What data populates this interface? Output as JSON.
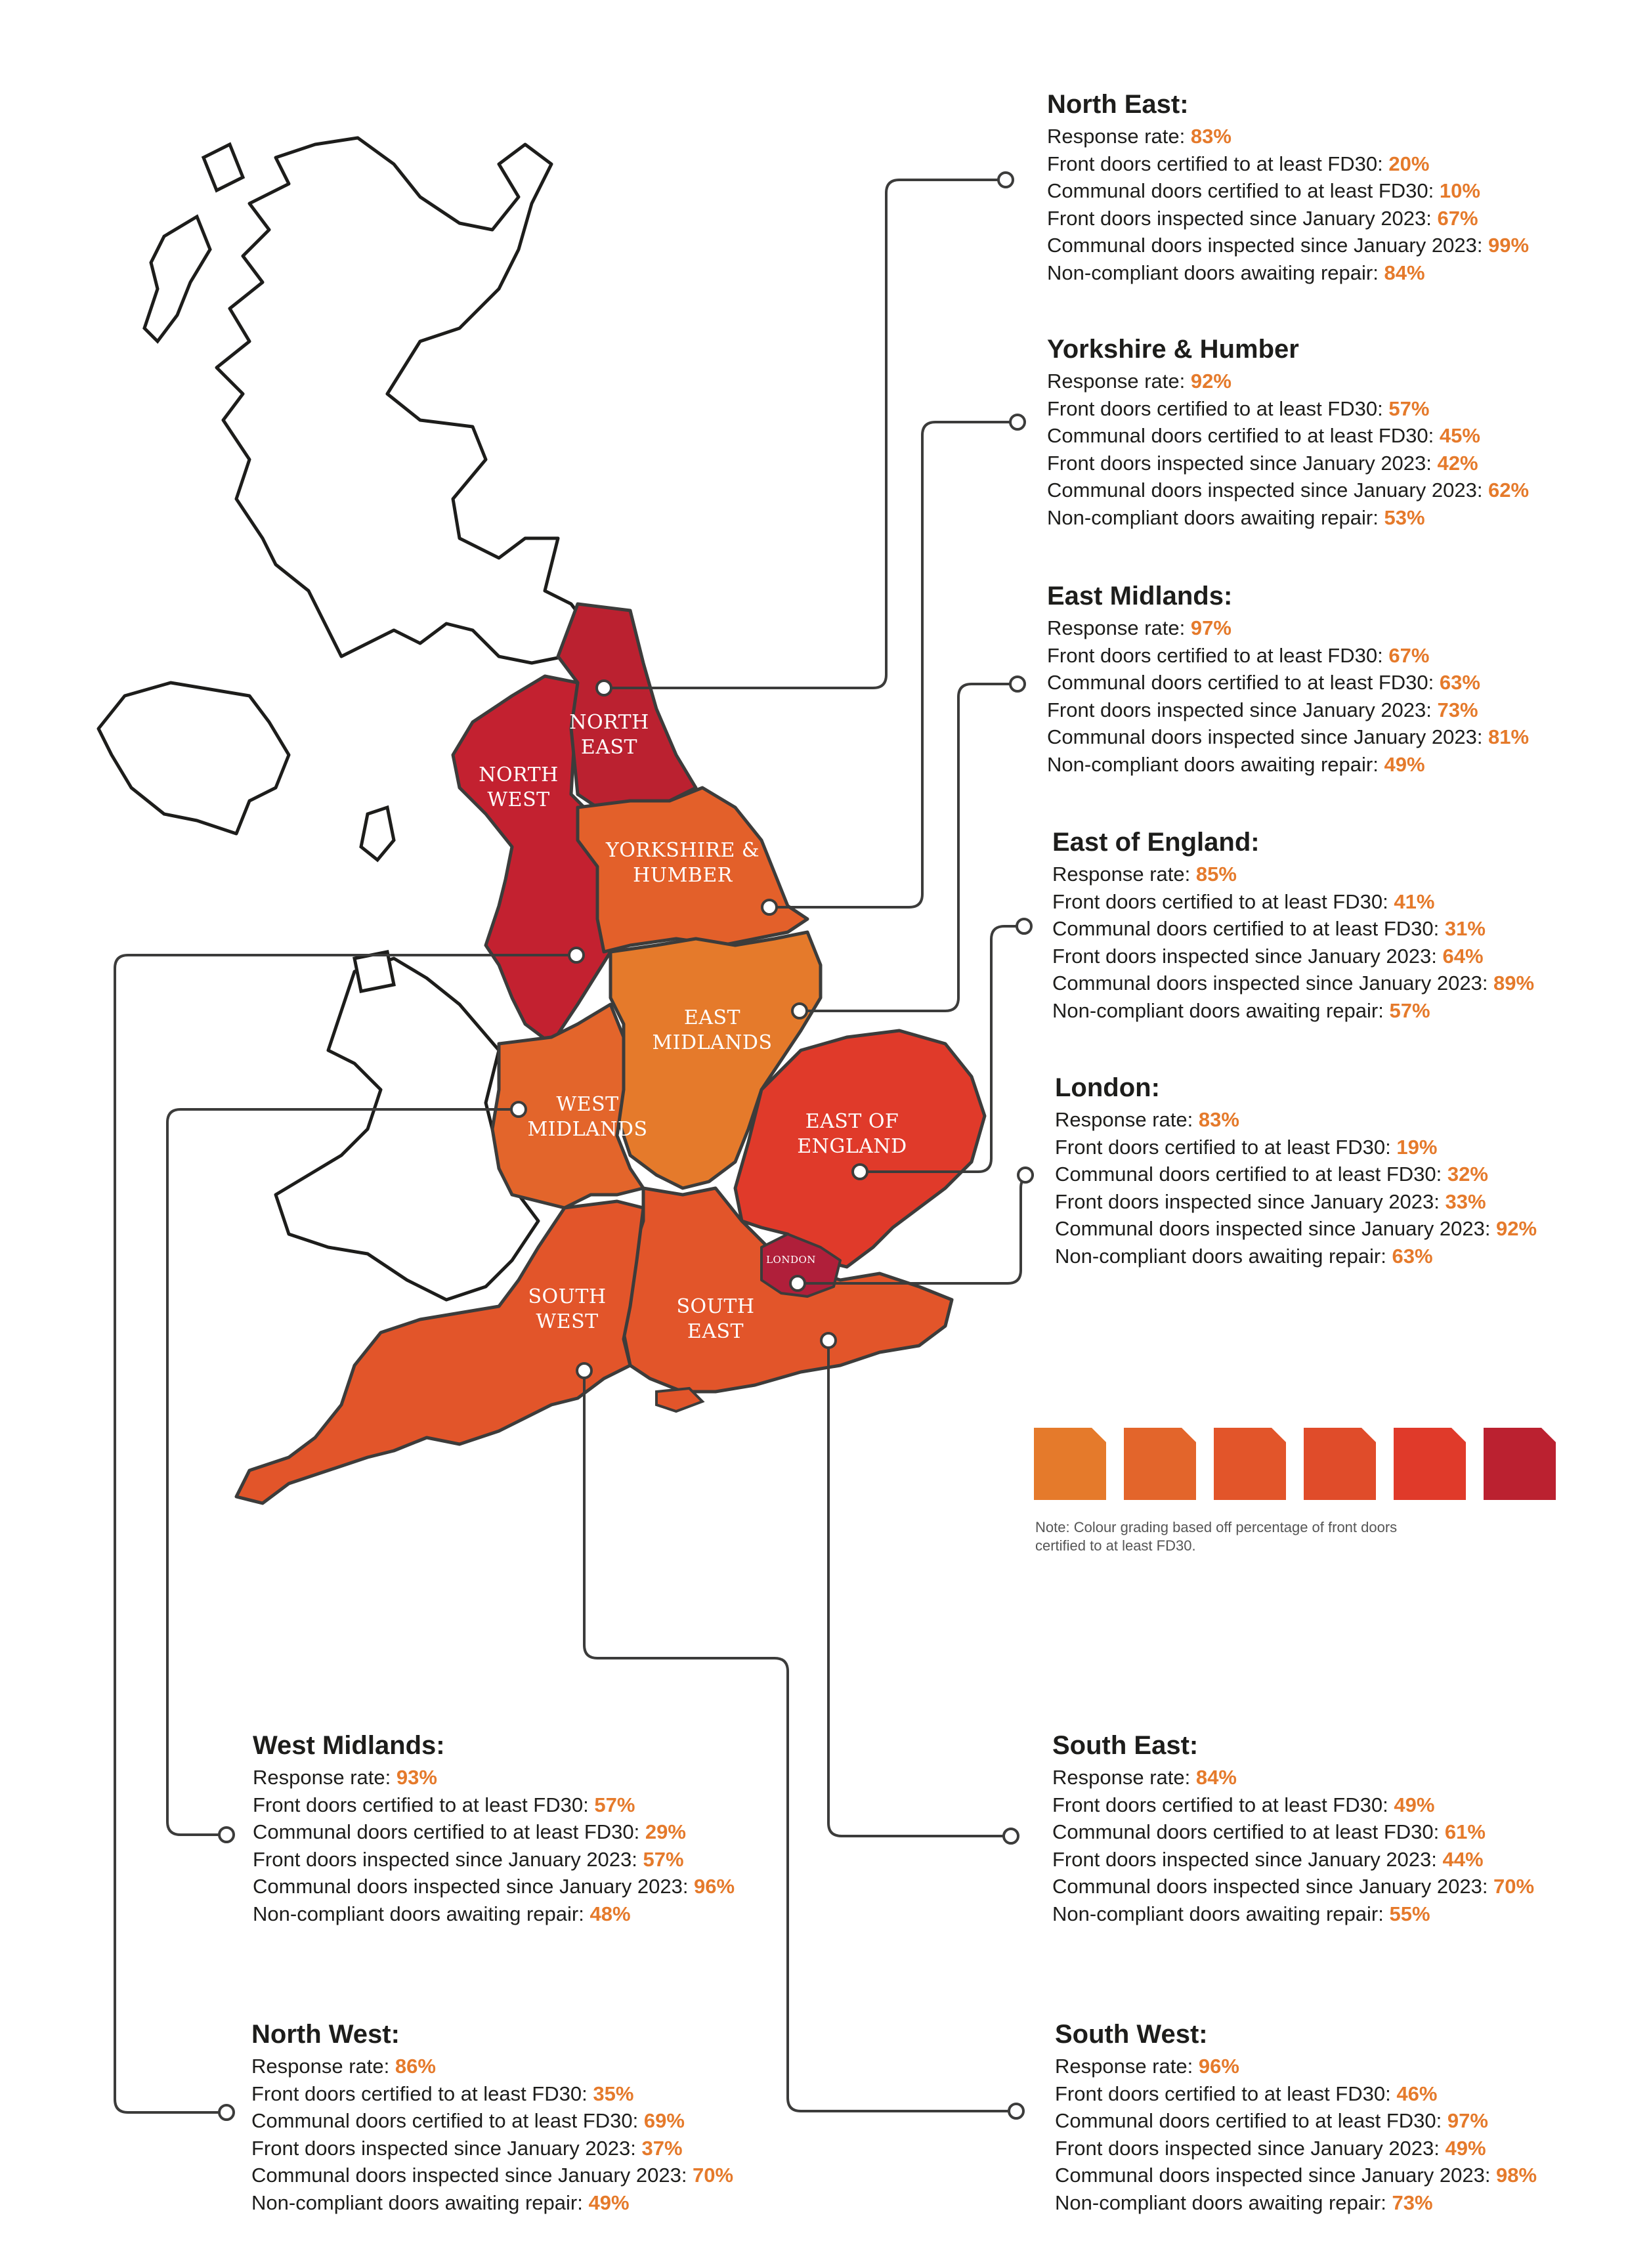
{
  "metrics": {
    "response": "Response rate:",
    "front_cert": "Front doors certified to at least FD30:",
    "communal_cert": "Communal doors certified to at least FD30:",
    "front_insp": "Front doors inspected since January 2023:",
    "communal_insp": "Communal doors inspected since January 2023:",
    "noncompliant": "Non-compliant doors awaiting repair:"
  },
  "regions": {
    "north_east": {
      "title": "North East:",
      "map_label": [
        "NORTH",
        "EAST"
      ],
      "response": "83%",
      "front_cert": "20%",
      "communal_cert": "10%",
      "front_insp": "67%",
      "communal_insp": "99%",
      "noncompliant": "84%",
      "fill": "#bb2130"
    },
    "yorkshire": {
      "title": "Yorkshire & Humber",
      "map_label": [
        "YORKSHIRE &",
        "HUMBER"
      ],
      "response": "92%",
      "front_cert": "57%",
      "communal_cert": "45%",
      "front_insp": "42%",
      "communal_insp": "62%",
      "noncompliant": "53%",
      "fill": "#e3602a"
    },
    "east_midlands": {
      "title": "East Midlands:",
      "map_label": [
        "EAST",
        "MIDLANDS"
      ],
      "response": "97%",
      "front_cert": "67%",
      "communal_cert": "63%",
      "front_insp": "73%",
      "communal_insp": "81%",
      "noncompliant": "49%",
      "fill": "#e57a2b"
    },
    "east_of_england": {
      "title": "East of England:",
      "map_label": [
        "EAST OF",
        "ENGLAND"
      ],
      "response": "85%",
      "front_cert": "41%",
      "communal_cert": "31%",
      "front_insp": "64%",
      "communal_insp": "89%",
      "noncompliant": "57%",
      "fill": "#e03a2a"
    },
    "london": {
      "title": "London:",
      "map_label": [
        "LONDON"
      ],
      "response": "83%",
      "front_cert": "19%",
      "communal_cert": "32%",
      "front_insp": "33%",
      "communal_insp": "92%",
      "noncompliant": "63%",
      "fill": "#b01f3a"
    },
    "west_midlands": {
      "title": "West Midlands:",
      "map_label": [
        "WEST",
        "MIDLANDS"
      ],
      "response": "93%",
      "front_cert": "57%",
      "communal_cert": "29%",
      "front_insp": "57%",
      "communal_insp": "96%",
      "noncompliant": "48%",
      "fill": "#e3652b"
    },
    "south_east": {
      "title": "South East:",
      "map_label": [
        "SOUTH",
        "EAST"
      ],
      "response": "84%",
      "front_cert": "49%",
      "communal_cert": "61%",
      "front_insp": "44%",
      "communal_insp": "70%",
      "noncompliant": "55%",
      "fill": "#e2552a"
    },
    "north_west": {
      "title": "North West:",
      "map_label": [
        "NORTH",
        "WEST"
      ],
      "response": "86%",
      "front_cert": "35%",
      "communal_cert": "69%",
      "front_insp": "37%",
      "communal_insp": "70%",
      "noncompliant": "49%",
      "fill": "#c32130"
    },
    "south_west": {
      "title": "South West:",
      "map_label": [
        "SOUTH",
        "WEST"
      ],
      "response": "96%",
      "front_cert": "46%",
      "communal_cert": "97%",
      "front_insp": "49%",
      "communal_insp": "98%",
      "noncompliant": "73%",
      "fill": "#e2552a"
    }
  },
  "legend": {
    "swatches": [
      "#e57a2b",
      "#e3652b",
      "#e2552a",
      "#e04c2a",
      "#e03a2a",
      "#bb2130"
    ],
    "note": "Note: Colour grading based off percentage of front doors certified to at least FD30."
  },
  "colors": {
    "accent": "#e57a2b",
    "outline": "#3c3c3b"
  }
}
